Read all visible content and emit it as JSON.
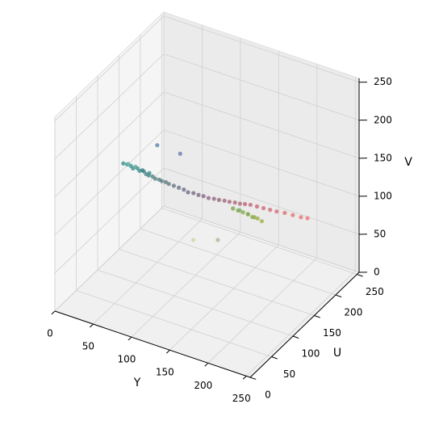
{
  "chart_data": {
    "type": "scatter3d",
    "x_label": "Y",
    "y_label": "U",
    "z_label": "V",
    "xlim": [
      0,
      255
    ],
    "ylim": [
      0,
      255
    ],
    "zlim": [
      0,
      255
    ],
    "xticks": [
      0,
      50,
      100,
      150,
      200,
      250
    ],
    "yticks": [
      0,
      50,
      100,
      150,
      200,
      250
    ],
    "zticks": [
      0,
      50,
      100,
      150,
      200,
      250
    ],
    "grid": true,
    "x": [
      18,
      22,
      26,
      30,
      34,
      38,
      42,
      46,
      50,
      54,
      58,
      62,
      66,
      70,
      74,
      28,
      36,
      44,
      52,
      80,
      86,
      92,
      98,
      104,
      110,
      116,
      122,
      128,
      134,
      140,
      146,
      152,
      158,
      164,
      170,
      178,
      186,
      194,
      202,
      212,
      222,
      232,
      240,
      150,
      156,
      162,
      168,
      174,
      180,
      186,
      160,
      170,
      178,
      125,
      157,
      50,
      80
    ],
    "y": [
      128,
      130,
      131,
      129,
      132,
      130,
      133,
      131,
      130,
      132,
      131,
      133,
      132,
      134,
      134,
      122,
      124,
      126,
      128,
      135,
      136,
      137,
      136,
      138,
      139,
      140,
      141,
      143,
      144,
      146,
      147,
      149,
      150,
      151,
      153,
      154,
      155,
      156,
      157,
      158,
      159,
      160,
      161,
      148,
      149,
      150,
      151,
      150,
      152,
      151,
      146,
      147,
      148,
      100,
      100,
      150,
      150
    ],
    "z": [
      131,
      130,
      129,
      128,
      128,
      127,
      126,
      125,
      125,
      124,
      123,
      122,
      122,
      121,
      120,
      137,
      135,
      132,
      130,
      119,
      118,
      117,
      116,
      116,
      115,
      115,
      114,
      114,
      114,
      114,
      114,
      114,
      114,
      115,
      115,
      115,
      115,
      115,
      115,
      116,
      116,
      116,
      117,
      106,
      105,
      104,
      103,
      102,
      101,
      100,
      108,
      106,
      104,
      82,
      93,
      154,
      153
    ],
    "colors": [
      "#2a8c8c",
      "#2a8a8a",
      "#2f8a8a",
      "#2e8888",
      "#338888",
      "#3a8686",
      "#3c8484",
      "#408282",
      "#448080",
      "#487e7e",
      "#4c7c7e",
      "#507a7e",
      "#55787e",
      "#58767e",
      "#5c747e",
      "#6fb8a8",
      "#5aa59a",
      "#2c7e84",
      "#3d8a8a",
      "#5f7080",
      "#656c80",
      "#6a6880",
      "#6e6480",
      "#726080",
      "#7a6080",
      "#806080",
      "#886080",
      "#8e6078",
      "#946076",
      "#9a6074",
      "#a06074",
      "#a86070",
      "#b06070",
      "#b86070",
      "#c06070",
      "#c86070",
      "#cc6070",
      "#d06470",
      "#d46470",
      "#dc6a70",
      "#e46c70",
      "#ea6e70",
      "#f07070",
      "#7aa040",
      "#80a240",
      "#88a640",
      "#8ea840",
      "#94aa40",
      "#9aac40",
      "#a0ae40",
      "#70b060",
      "#7aac50",
      "#86a848",
      "#d8d0a0",
      "#b0b090",
      "#5a7aaa",
      "#6a74b0"
    ]
  }
}
